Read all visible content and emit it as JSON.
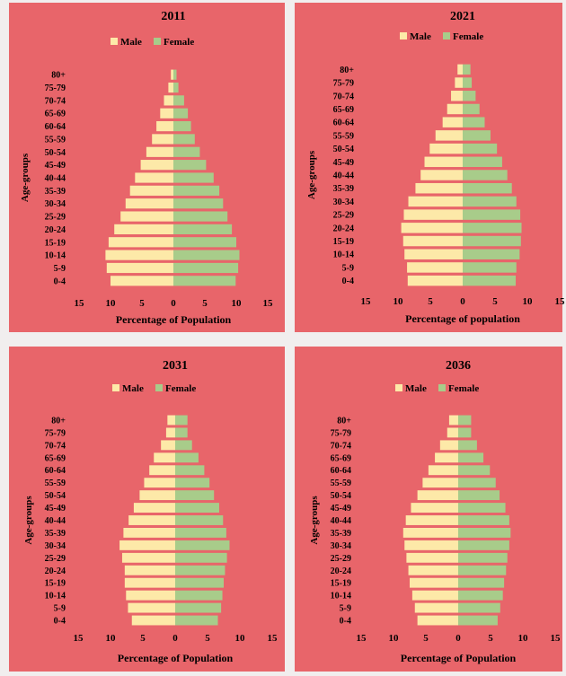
{
  "colors": {
    "male": "#fde9a8",
    "female": "#a8cc8a",
    "panel_bg": "#e8656a",
    "page_bg": "#f1eeee"
  },
  "legend": {
    "male": "Male",
    "female": "Female"
  },
  "age_groups": [
    "0-4",
    "5-9",
    "10-14",
    "15-19",
    "20-24",
    "25-29",
    "30-34",
    "35-39",
    "40-44",
    "45-49",
    "50-54",
    "55-59",
    "60-64",
    "65-69",
    "70-74",
    "75-79",
    "80+"
  ],
  "chart_data": [
    {
      "type": "bar",
      "title": "2011",
      "xlabel": "Percentage of Population",
      "ylabel": "Age-groups",
      "xlim": [
        -15,
        15
      ],
      "xticks": [
        "15",
        "10",
        "5",
        "0",
        "5",
        "10",
        "15"
      ],
      "categories": [
        "0-4",
        "5-9",
        "10-14",
        "15-19",
        "20-24",
        "25-29",
        "30-34",
        "35-39",
        "40-44",
        "45-49",
        "50-54",
        "55-59",
        "60-64",
        "65-69",
        "70-74",
        "75-79",
        "80+"
      ],
      "series": [
        {
          "name": "Male",
          "values": [
            10.0,
            10.6,
            10.8,
            10.3,
            9.4,
            8.4,
            7.6,
            6.9,
            6.1,
            5.2,
            4.3,
            3.4,
            2.7,
            2.1,
            1.5,
            0.8,
            0.4
          ]
        },
        {
          "name": "Female",
          "values": [
            9.9,
            10.3,
            10.5,
            10.0,
            9.3,
            8.6,
            7.9,
            7.3,
            6.4,
            5.2,
            4.2,
            3.4,
            2.8,
            2.3,
            1.7,
            0.8,
            0.5
          ]
        }
      ]
    },
    {
      "type": "bar",
      "title": "2021",
      "xlabel": "Percentage of population",
      "ylabel": "Age-groups",
      "xlim": [
        -15,
        15
      ],
      "xticks": [
        "15",
        "10",
        "5",
        "0",
        "5",
        "10",
        "15"
      ],
      "categories": [
        "0-4",
        "5-9",
        "10-14",
        "15-19",
        "20-24",
        "25-29",
        "30-34",
        "35-39",
        "40-44",
        "45-49",
        "50-54",
        "55-59",
        "60-64",
        "65-69",
        "70-74",
        "75-79",
        "80+"
      ],
      "series": [
        {
          "name": "Male",
          "values": [
            8.5,
            8.6,
            9.0,
            9.2,
            9.5,
            9.1,
            8.4,
            7.3,
            6.5,
            5.9,
            5.1,
            4.2,
            3.1,
            2.4,
            1.8,
            1.2,
            0.8
          ]
        },
        {
          "name": "Female",
          "values": [
            8.2,
            8.3,
            8.8,
            9.0,
            9.1,
            8.9,
            8.3,
            7.6,
            6.9,
            6.1,
            5.3,
            4.3,
            3.4,
            2.6,
            2.0,
            1.4,
            1.2
          ]
        }
      ]
    },
    {
      "type": "bar",
      "title": "2031",
      "xlabel": "Percentage of Population",
      "ylabel": "Age-groups",
      "xlim": [
        -15,
        15
      ],
      "xticks": [
        "15",
        "10",
        "5",
        "0",
        "5",
        "10",
        "15"
      ],
      "categories": [
        "0-4",
        "5-9",
        "10-14",
        "15-19",
        "20-24",
        "25-29",
        "30-34",
        "35-39",
        "40-44",
        "45-49",
        "50-54",
        "55-59",
        "60-64",
        "65-69",
        "70-74",
        "75-79",
        "80+"
      ],
      "series": [
        {
          "name": "Male",
          "values": [
            6.7,
            7.3,
            7.6,
            7.8,
            7.8,
            8.2,
            8.6,
            8.0,
            7.2,
            6.4,
            5.5,
            4.8,
            4.0,
            3.3,
            2.2,
            1.4,
            1.2
          ]
        },
        {
          "name": "Female",
          "values": [
            6.6,
            7.1,
            7.3,
            7.5,
            7.7,
            8.0,
            8.4,
            7.9,
            7.4,
            6.8,
            6.0,
            5.3,
            4.5,
            3.6,
            2.6,
            1.9,
            1.9
          ]
        }
      ]
    },
    {
      "type": "bar",
      "title": "2036",
      "xlabel": "Percentage of Population",
      "ylabel": "Age-groups",
      "xlim": [
        -15,
        15
      ],
      "xticks": [
        "15",
        "10",
        "5",
        "0",
        "5",
        "10",
        "15"
      ],
      "categories": [
        "0-4",
        "5-9",
        "10-14",
        "15-19",
        "20-24",
        "25-29",
        "30-34",
        "35-39",
        "40-44",
        "45-49",
        "50-54",
        "55-59",
        "60-64",
        "65-69",
        "70-74",
        "75-79",
        "80+"
      ],
      "series": [
        {
          "name": "Male",
          "values": [
            6.3,
            6.7,
            7.1,
            7.5,
            7.7,
            8.0,
            8.3,
            8.5,
            8.1,
            7.3,
            6.3,
            5.5,
            4.6,
            3.6,
            2.8,
            1.7,
            1.4
          ]
        },
        {
          "name": "Female",
          "values": [
            6.1,
            6.5,
            6.9,
            7.1,
            7.4,
            7.6,
            7.9,
            8.1,
            7.9,
            7.3,
            6.4,
            5.8,
            4.9,
            3.9,
            2.9,
            2.0,
            2.0
          ]
        }
      ]
    }
  ]
}
